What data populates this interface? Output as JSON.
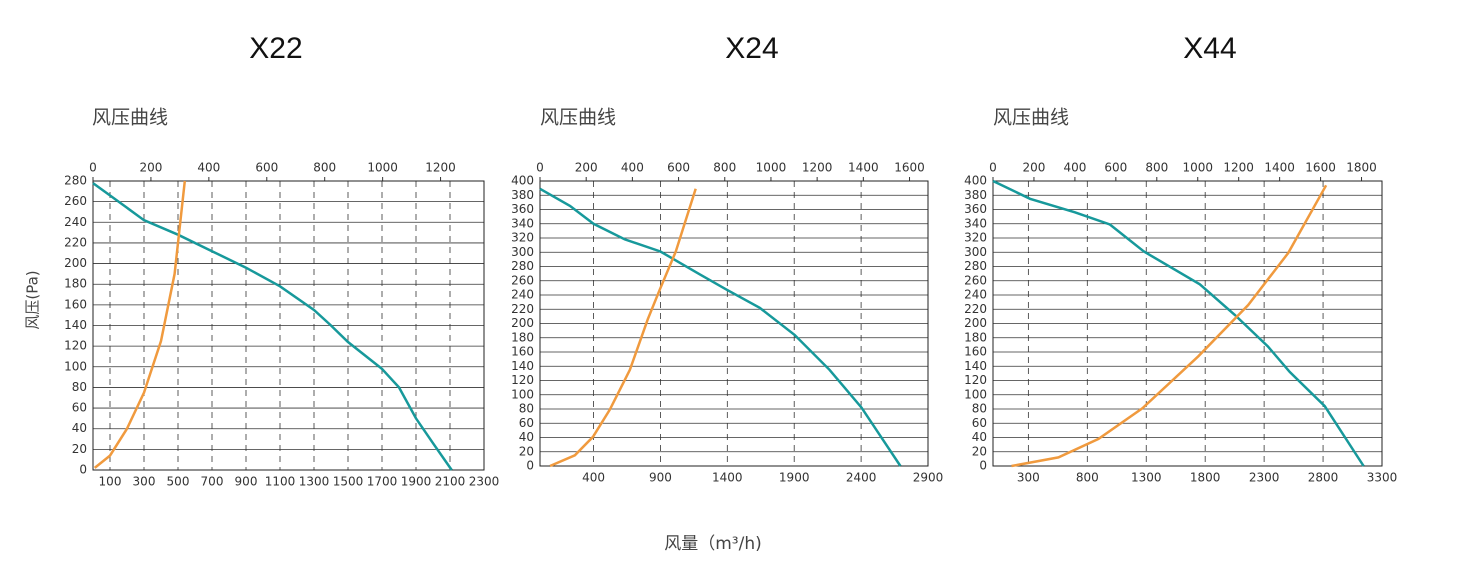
{
  "xlabel": "风量（m³/h)",
  "chart_data": [
    {
      "type": "line",
      "title": "X22",
      "subtitle": "风压曲线",
      "ylabel": "风压(Pa)",
      "ytick_color": "#d9482b",
      "grid": true,
      "xlim": [
        0,
        2300
      ],
      "xticks": [
        100,
        300,
        500,
        700,
        900,
        1100,
        1300,
        1500,
        1700,
        1900,
        2100,
        2300
      ],
      "x2lim": [
        0,
        1350
      ],
      "x2ticks": [
        0,
        200,
        400,
        600,
        800,
        1000,
        1200
      ],
      "ylim": [
        0,
        280
      ],
      "yticks": [
        0,
        20,
        40,
        60,
        80,
        100,
        120,
        140,
        160,
        180,
        200,
        220,
        240,
        260,
        280
      ],
      "series": [
        {
          "color": "#17999b",
          "x": [
            0,
            200,
            300,
            500,
            700,
            900,
            1100,
            1300,
            1400,
            1500,
            1700,
            1800,
            1900,
            2000,
            2110
          ],
          "values": [
            278,
            254,
            242,
            228,
            212,
            196,
            178,
            155,
            140,
            124,
            98,
            80,
            50,
            26,
            0
          ]
        },
        {
          "color": "#f09a3e",
          "x": [
            10,
            100,
            200,
            300,
            400,
            480,
            540
          ],
          "values": [
            2,
            14,
            40,
            75,
            125,
            190,
            280
          ]
        }
      ]
    },
    {
      "type": "line",
      "title": "X24",
      "subtitle": "风压曲线",
      "ytick_color": "#d9482b",
      "grid": true,
      "xlim": [
        0,
        2900
      ],
      "xticks": [
        400,
        900,
        1400,
        1900,
        2400,
        2900
      ],
      "x2lim": [
        0,
        1680
      ],
      "x2ticks": [
        0,
        200,
        400,
        600,
        800,
        1000,
        1200,
        1400,
        1600
      ],
      "ylim": [
        0,
        400
      ],
      "yticks": [
        0,
        20,
        40,
        60,
        80,
        100,
        120,
        140,
        160,
        180,
        200,
        220,
        240,
        260,
        280,
        300,
        320,
        340,
        360,
        380,
        400
      ],
      "series": [
        {
          "color": "#17999b",
          "x": [
            0,
            224,
            400,
            634,
            900,
            1194,
            1390,
            1642,
            1903,
            2164,
            2403,
            2694
          ],
          "values": [
            389,
            365,
            340,
            318,
            301,
            269,
            248,
            222,
            184,
            135,
            82,
            0
          ]
        },
        {
          "color": "#f09a3e",
          "x": [
            75,
            261,
            396,
            522,
            672,
            806,
            896,
            1015,
            1164
          ],
          "values": [
            0,
            15,
            41,
            79,
            135,
            206,
            248,
            301,
            389
          ]
        }
      ]
    },
    {
      "type": "line",
      "title": "X44",
      "subtitle": "风压曲线",
      "ytick_color": "#333333",
      "grid": true,
      "xlim": [
        0,
        3300
      ],
      "xticks": [
        300,
        800,
        1300,
        1800,
        2300,
        2800,
        3300
      ],
      "x2lim": [
        0,
        1900
      ],
      "x2ticks": [
        0,
        200,
        400,
        600,
        800,
        1000,
        1200,
        1400,
        1600,
        1800
      ],
      "ylim": [
        0,
        400
      ],
      "yticks": [
        0,
        20,
        40,
        60,
        80,
        100,
        120,
        140,
        160,
        180,
        200,
        220,
        240,
        260,
        280,
        300,
        320,
        340,
        360,
        380,
        400
      ],
      "series": [
        {
          "color": "#17999b",
          "x": [
            0,
            314,
            695,
            992,
            1280,
            1754,
            2051,
            2331,
            2517,
            2814,
            3144
          ],
          "values": [
            400,
            375,
            356,
            339,
            301,
            255,
            212,
            168,
            132,
            84,
            0
          ]
        },
        {
          "color": "#f09a3e",
          "x": [
            157,
            555,
            895,
            1267,
            1742,
            2165,
            2504,
            2826
          ],
          "values": [
            0,
            12,
            38,
            81,
            154,
            226,
            299,
            394
          ]
        }
      ]
    }
  ]
}
